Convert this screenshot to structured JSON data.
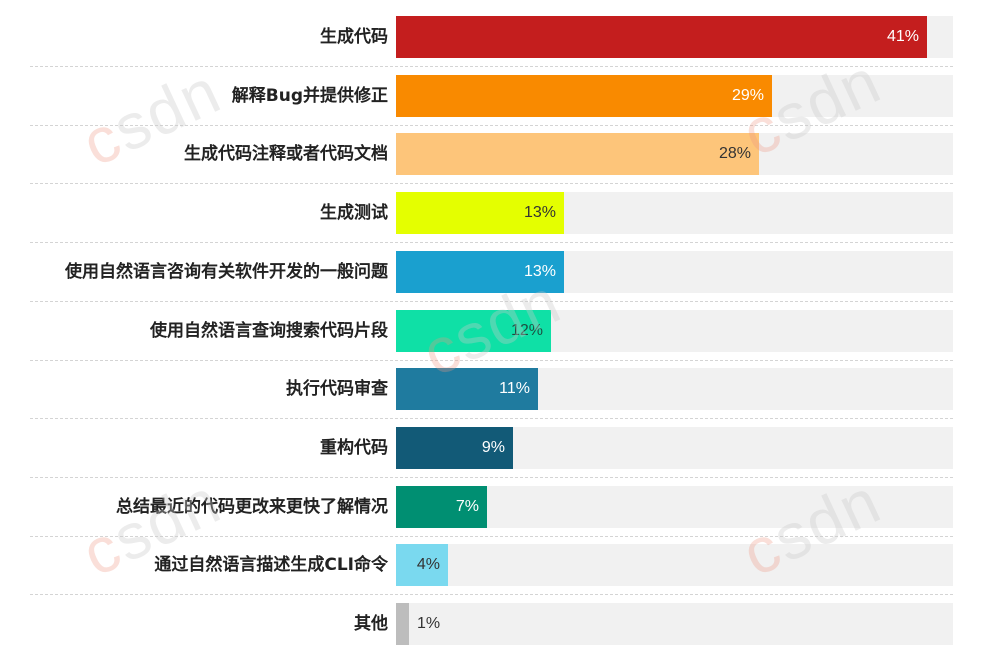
{
  "chart_data": {
    "type": "bar",
    "orientation": "horizontal",
    "title": "",
    "xlabel": "",
    "ylabel": "",
    "xlim": [
      0,
      43
    ],
    "grid": false,
    "legend": null,
    "categories": [
      "生成代码",
      "解释Bug并提供修正",
      "生成代码注释或者代码文档",
      "生成测试",
      "使用自然语言咨询有关软件开发的一般问题",
      "使用自然语言查询搜索代码片段",
      "执行代码审查",
      "重构代码",
      "总结最近的代码更改来更快了解情况",
      "通过自然语言描述生成CLI命令",
      "其他"
    ],
    "values": [
      41,
      29,
      28,
      13,
      13,
      12,
      11,
      9,
      7,
      4,
      1
    ],
    "value_labels": [
      "41%",
      "29%",
      "28%",
      "13%",
      "13%",
      "12%",
      "11%",
      "9%",
      "7%",
      "4%",
      "1%"
    ],
    "colors": [
      "#c41e1e",
      "#f98a00",
      "#fdc57a",
      "#e4ff00",
      "#1aa0cf",
      "#0fe0a6",
      "#1f7b9f",
      "#125a77",
      "#008f72",
      "#7ad9ef",
      "#bdbdbd"
    ],
    "label_colors": [
      "#ffffff",
      "#ffffff",
      "#333333",
      "#333333",
      "#ffffff",
      "#1d4d40",
      "#ffffff",
      "#ffffff",
      "#ffffff",
      "#333333",
      "#333333"
    ],
    "track_color": "#f1f1f1"
  },
  "watermark": "CSDN"
}
